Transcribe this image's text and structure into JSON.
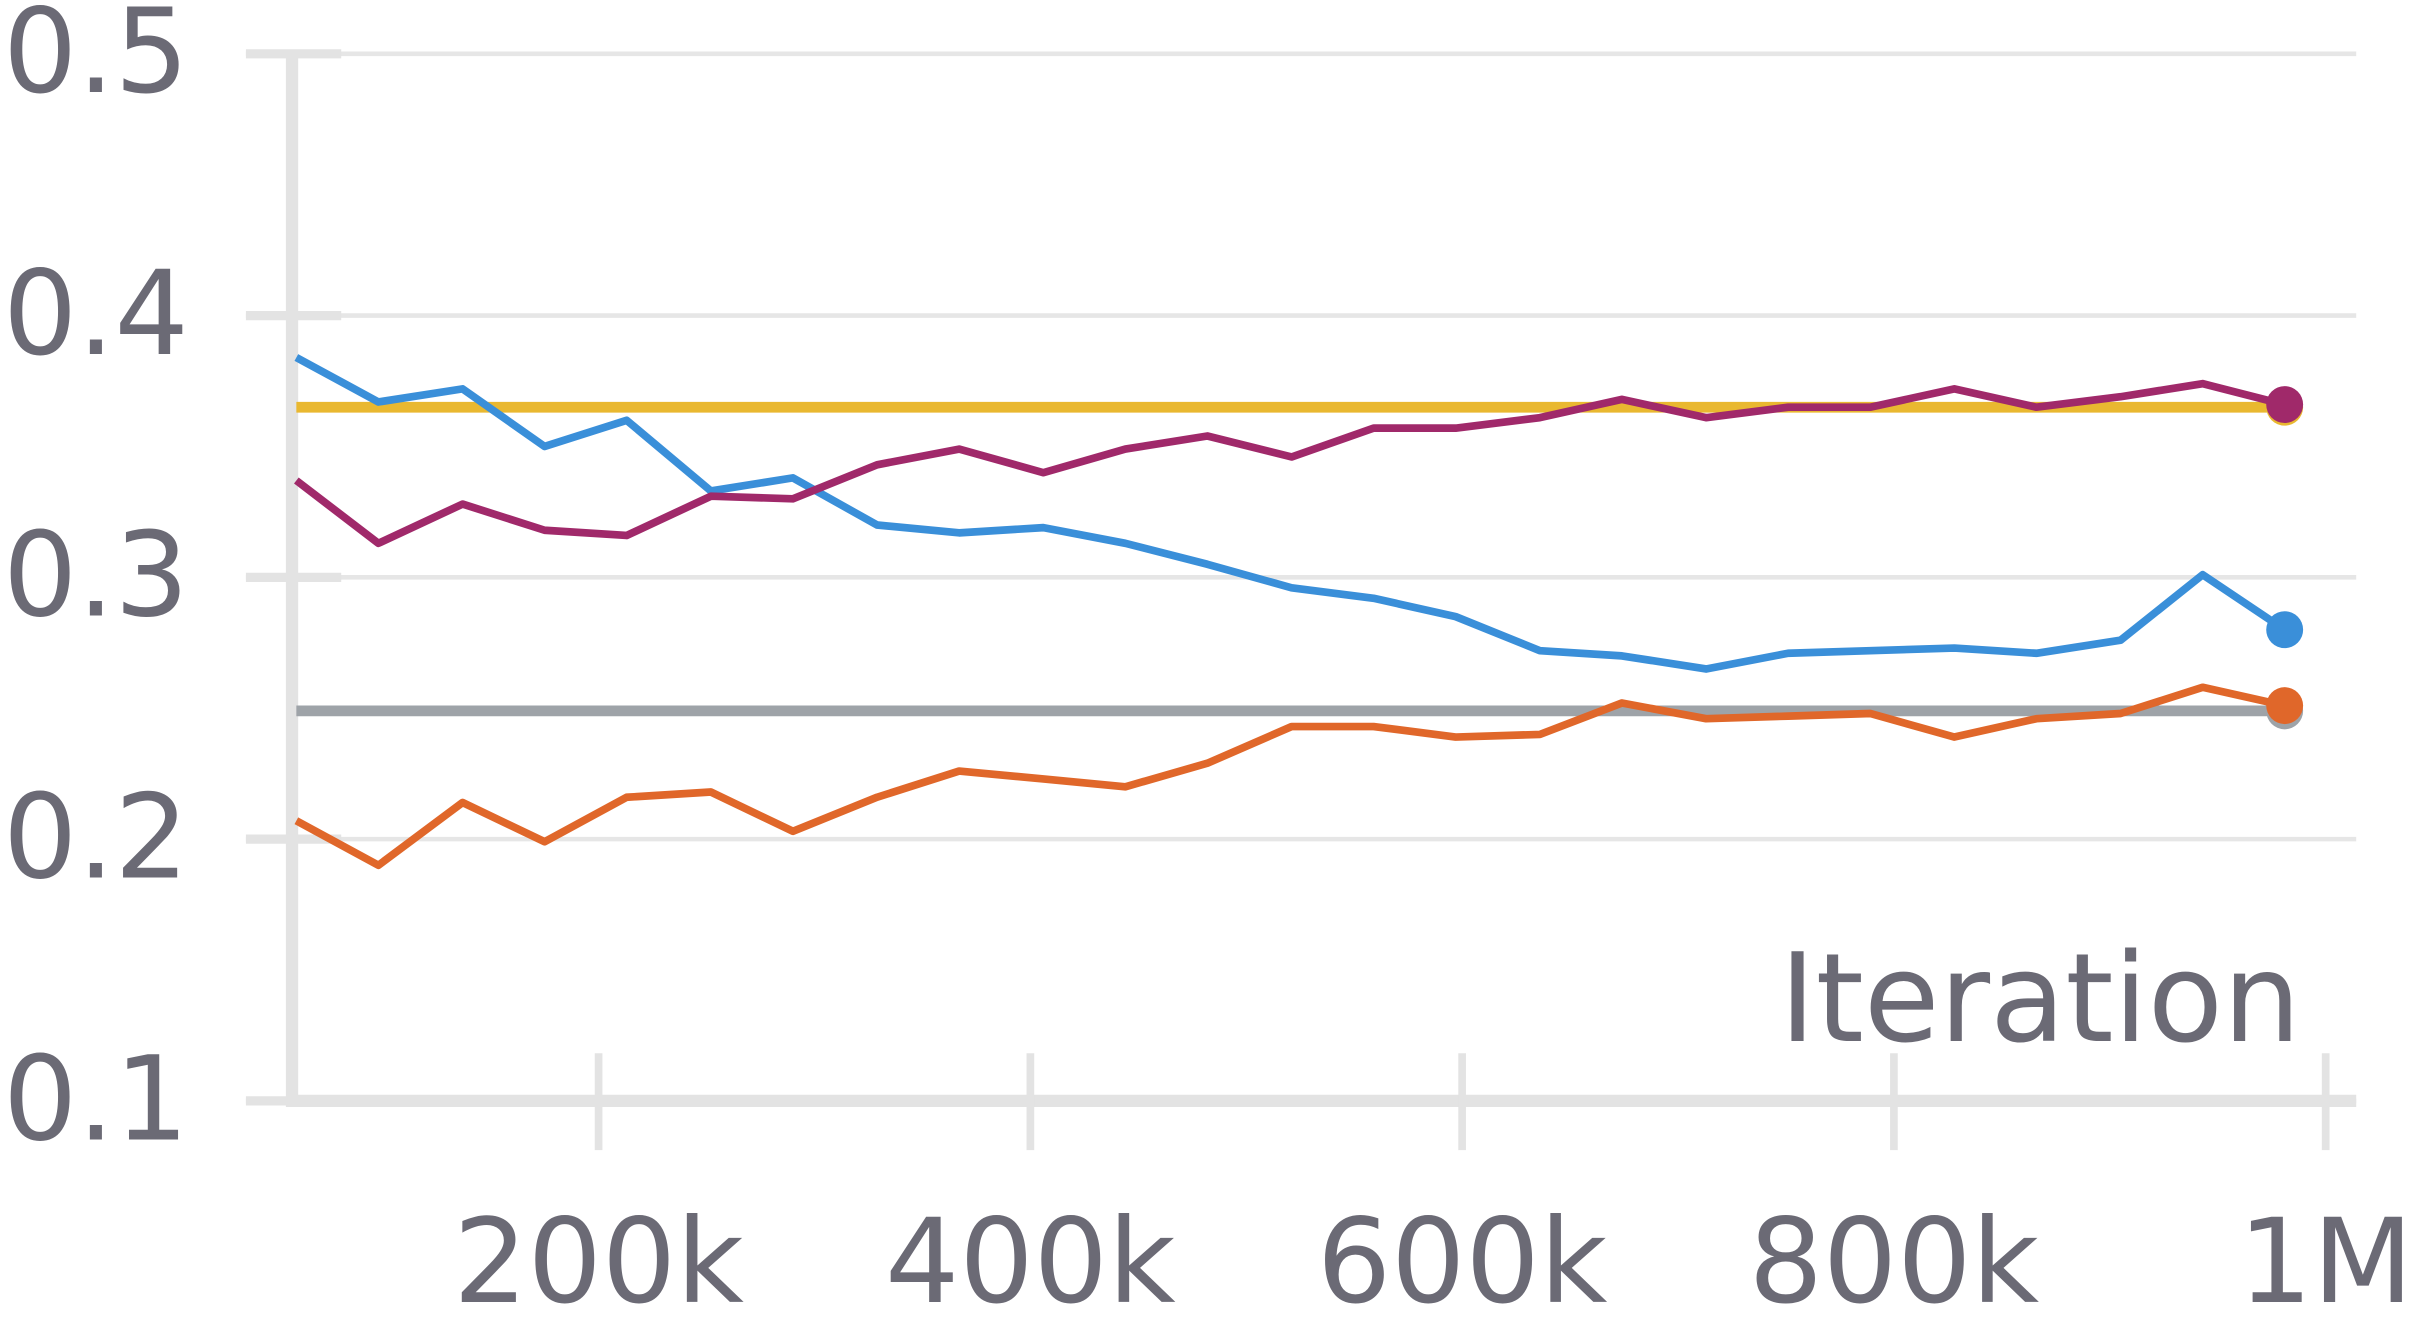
{
  "chart_data": {
    "type": "line",
    "xlabel": "Iteration",
    "x": [
      60000,
      98000,
      137000,
      175000,
      213000,
      252000,
      290000,
      329000,
      367000,
      406000,
      444000,
      482000,
      521000,
      559000,
      597000,
      636000,
      674000,
      713000,
      751000,
      789000,
      828000,
      866000,
      905000,
      943000,
      981000
    ],
    "series": [
      {
        "color": "#3a8fd9",
        "values": [
          0.384,
          0.367,
          0.372,
          0.35,
          0.36,
          0.333,
          0.338,
          0.32,
          0.317,
          0.319,
          0.313,
          0.305,
          0.296,
          0.292,
          0.285,
          0.272,
          0.27,
          0.265,
          0.271,
          0.272,
          0.273,
          0.271,
          0.276,
          0.301,
          0.28
        ]
      },
      {
        "color": "#a0296a",
        "values": [
          0.337,
          0.313,
          0.328,
          0.318,
          0.316,
          0.331,
          0.33,
          0.343,
          0.349,
          0.34,
          0.349,
          0.354,
          0.346,
          0.357,
          0.357,
          0.361,
          0.368,
          0.361,
          0.365,
          0.365,
          0.372,
          0.365,
          0.369,
          0.374,
          0.366
        ]
      },
      {
        "color": "#e0672a",
        "values": [
          0.207,
          0.19,
          0.214,
          0.199,
          0.216,
          0.218,
          0.203,
          0.216,
          0.226,
          0.223,
          0.22,
          0.229,
          0.243,
          0.243,
          0.239,
          0.24,
          0.252,
          0.246,
          0.247,
          0.248,
          0.239,
          0.246,
          0.248,
          0.258,
          0.251
        ]
      }
    ],
    "hlines": [
      {
        "color": "#e9b830",
        "value": 0.365
      },
      {
        "color": "#9ea3a8",
        "value": 0.249
      }
    ],
    "xlim": [
      58000,
      1012000
    ],
    "xticks": [
      {
        "value": 200000,
        "label": "200k"
      },
      {
        "value": 400000,
        "label": "400k"
      },
      {
        "value": 600000,
        "label": "600k"
      },
      {
        "value": 800000,
        "label": "800k"
      },
      {
        "value": 1000000,
        "label": "1M"
      }
    ],
    "ylim": [
      0.1,
      0.5
    ],
    "yticks": [
      0.1,
      0.2,
      0.3,
      0.4,
      0.5
    ],
    "grid": true
  }
}
